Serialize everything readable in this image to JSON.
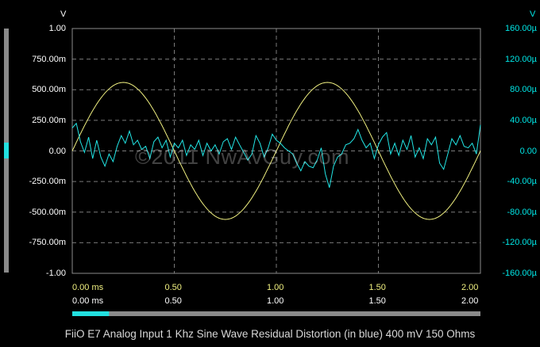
{
  "colors": {
    "background": "#000000",
    "grid": "#7a7a7a",
    "frame": "#8c8c8c",
    "sine": "#f0f080",
    "residual": "#22e6e6",
    "right_axis_text": "#00e5e5",
    "scrollbar_track": "#8a8a8a",
    "scrollbar_thumb": "#22e0e0"
  },
  "units": {
    "left": "V",
    "right": "V"
  },
  "left_ticks": [
    "1.00",
    "750.00m",
    "500.00m",
    "250.00m",
    "0.00",
    "-250.00m",
    "-500.00m",
    "-750.00m",
    "-1.00"
  ],
  "right_ticks": [
    "160.00µ",
    "120.00µ",
    "80.00µ",
    "40.00µ",
    "0.00",
    "-40.00µ",
    "-80.00µ",
    "-120.00µ",
    "-160.00µ"
  ],
  "x_ticks_top": [
    "0.00 ms",
    "0.50",
    "1.00",
    "1.50",
    "2.00"
  ],
  "x_ticks_bottom": [
    "0.00 ms",
    "0.50",
    "1.00",
    "1.50",
    "2.00"
  ],
  "watermark": "©2011 NwAvGuy.com",
  "caption": "FiiO E7 Analog Input 1 Khz Sine Wave Residual Distortion (in blue) 400 mV 150 Ohms",
  "scrollbars": {
    "vertical_thumb_level": 0.5,
    "horizontal_thumb_range": [
      0.0,
      0.09
    ]
  },
  "chart_data": {
    "type": "line",
    "title": "",
    "xlabel": "",
    "ylabel": "",
    "xlim": [
      0,
      2.0
    ],
    "ylim_left": [
      -1.0,
      1.0
    ],
    "ylim_right": [
      -160,
      160
    ],
    "grid": true,
    "series": [
      {
        "axis": "left",
        "color": "#f0f080",
        "x": [
          0,
          0.1,
          0.2,
          0.25,
          0.3,
          0.4,
          0.5,
          0.6,
          0.7,
          0.75,
          0.8,
          0.9,
          1.0,
          1.1,
          1.2,
          1.25,
          1.3,
          1.4,
          1.5,
          1.6,
          1.7,
          1.75,
          1.8,
          1.9,
          2.0
        ],
        "y": [
          0.0,
          0.33,
          0.53,
          0.56,
          0.53,
          0.33,
          0.0,
          -0.33,
          -0.53,
          -0.56,
          -0.53,
          -0.33,
          0.0,
          0.33,
          0.53,
          0.56,
          0.53,
          0.33,
          0.0,
          -0.33,
          -0.53,
          -0.56,
          -0.53,
          -0.33,
          0.0
        ]
      },
      {
        "axis": "right",
        "color": "#22e6e6",
        "x": [
          0.0,
          0.02,
          0.04,
          0.06,
          0.08,
          0.1,
          0.12,
          0.14,
          0.16,
          0.18,
          0.2,
          0.22,
          0.24,
          0.26,
          0.28,
          0.3,
          0.32,
          0.34,
          0.36,
          0.38,
          0.4,
          0.42,
          0.44,
          0.46,
          0.48,
          0.5,
          0.52,
          0.54,
          0.56,
          0.58,
          0.6,
          0.62,
          0.64,
          0.66,
          0.68,
          0.7,
          0.72,
          0.74,
          0.76,
          0.78,
          0.8,
          0.82,
          0.84,
          0.86,
          0.88,
          0.9,
          0.92,
          0.94,
          0.96,
          0.98,
          1.0,
          1.02,
          1.04,
          1.06,
          1.08,
          1.1,
          1.12,
          1.14,
          1.16,
          1.18,
          1.2,
          1.22,
          1.24,
          1.26,
          1.28,
          1.3,
          1.32,
          1.34,
          1.36,
          1.38,
          1.4,
          1.42,
          1.44,
          1.46,
          1.48,
          1.5,
          1.52,
          1.54,
          1.56,
          1.58,
          1.6,
          1.62,
          1.64,
          1.66,
          1.68,
          1.7,
          1.72,
          1.74,
          1.76,
          1.78,
          1.8,
          1.82,
          1.84,
          1.86,
          1.88,
          1.9,
          1.92,
          1.94,
          1.96,
          1.98,
          2.0
        ],
        "y": [
          30,
          36,
          12,
          -2,
          18,
          -10,
          14,
          -8,
          -20,
          -4,
          -14,
          6,
          20,
          10,
          26,
          8,
          14,
          2,
          6,
          -10,
          12,
          18,
          4,
          14,
          -8,
          10,
          4,
          14,
          -6,
          8,
          2,
          14,
          -6,
          10,
          0,
          8,
          -4,
          12,
          16,
          2,
          18,
          8,
          -2,
          -12,
          -4,
          20,
          10,
          -8,
          4,
          22,
          14,
          10,
          4,
          0,
          -4,
          -16,
          -26,
          -14,
          -20,
          -22,
          -12,
          4,
          -30,
          -48,
          -20,
          -8,
          -4,
          8,
          10,
          16,
          28,
          14,
          4,
          10,
          -10,
          8,
          18,
          24,
          -4,
          10,
          -6,
          14,
          2,
          20,
          -8,
          4,
          -10,
          16,
          8,
          18,
          -16,
          -24,
          -4,
          16,
          8,
          20,
          6,
          4,
          10,
          -4,
          34
        ]
      }
    ]
  }
}
